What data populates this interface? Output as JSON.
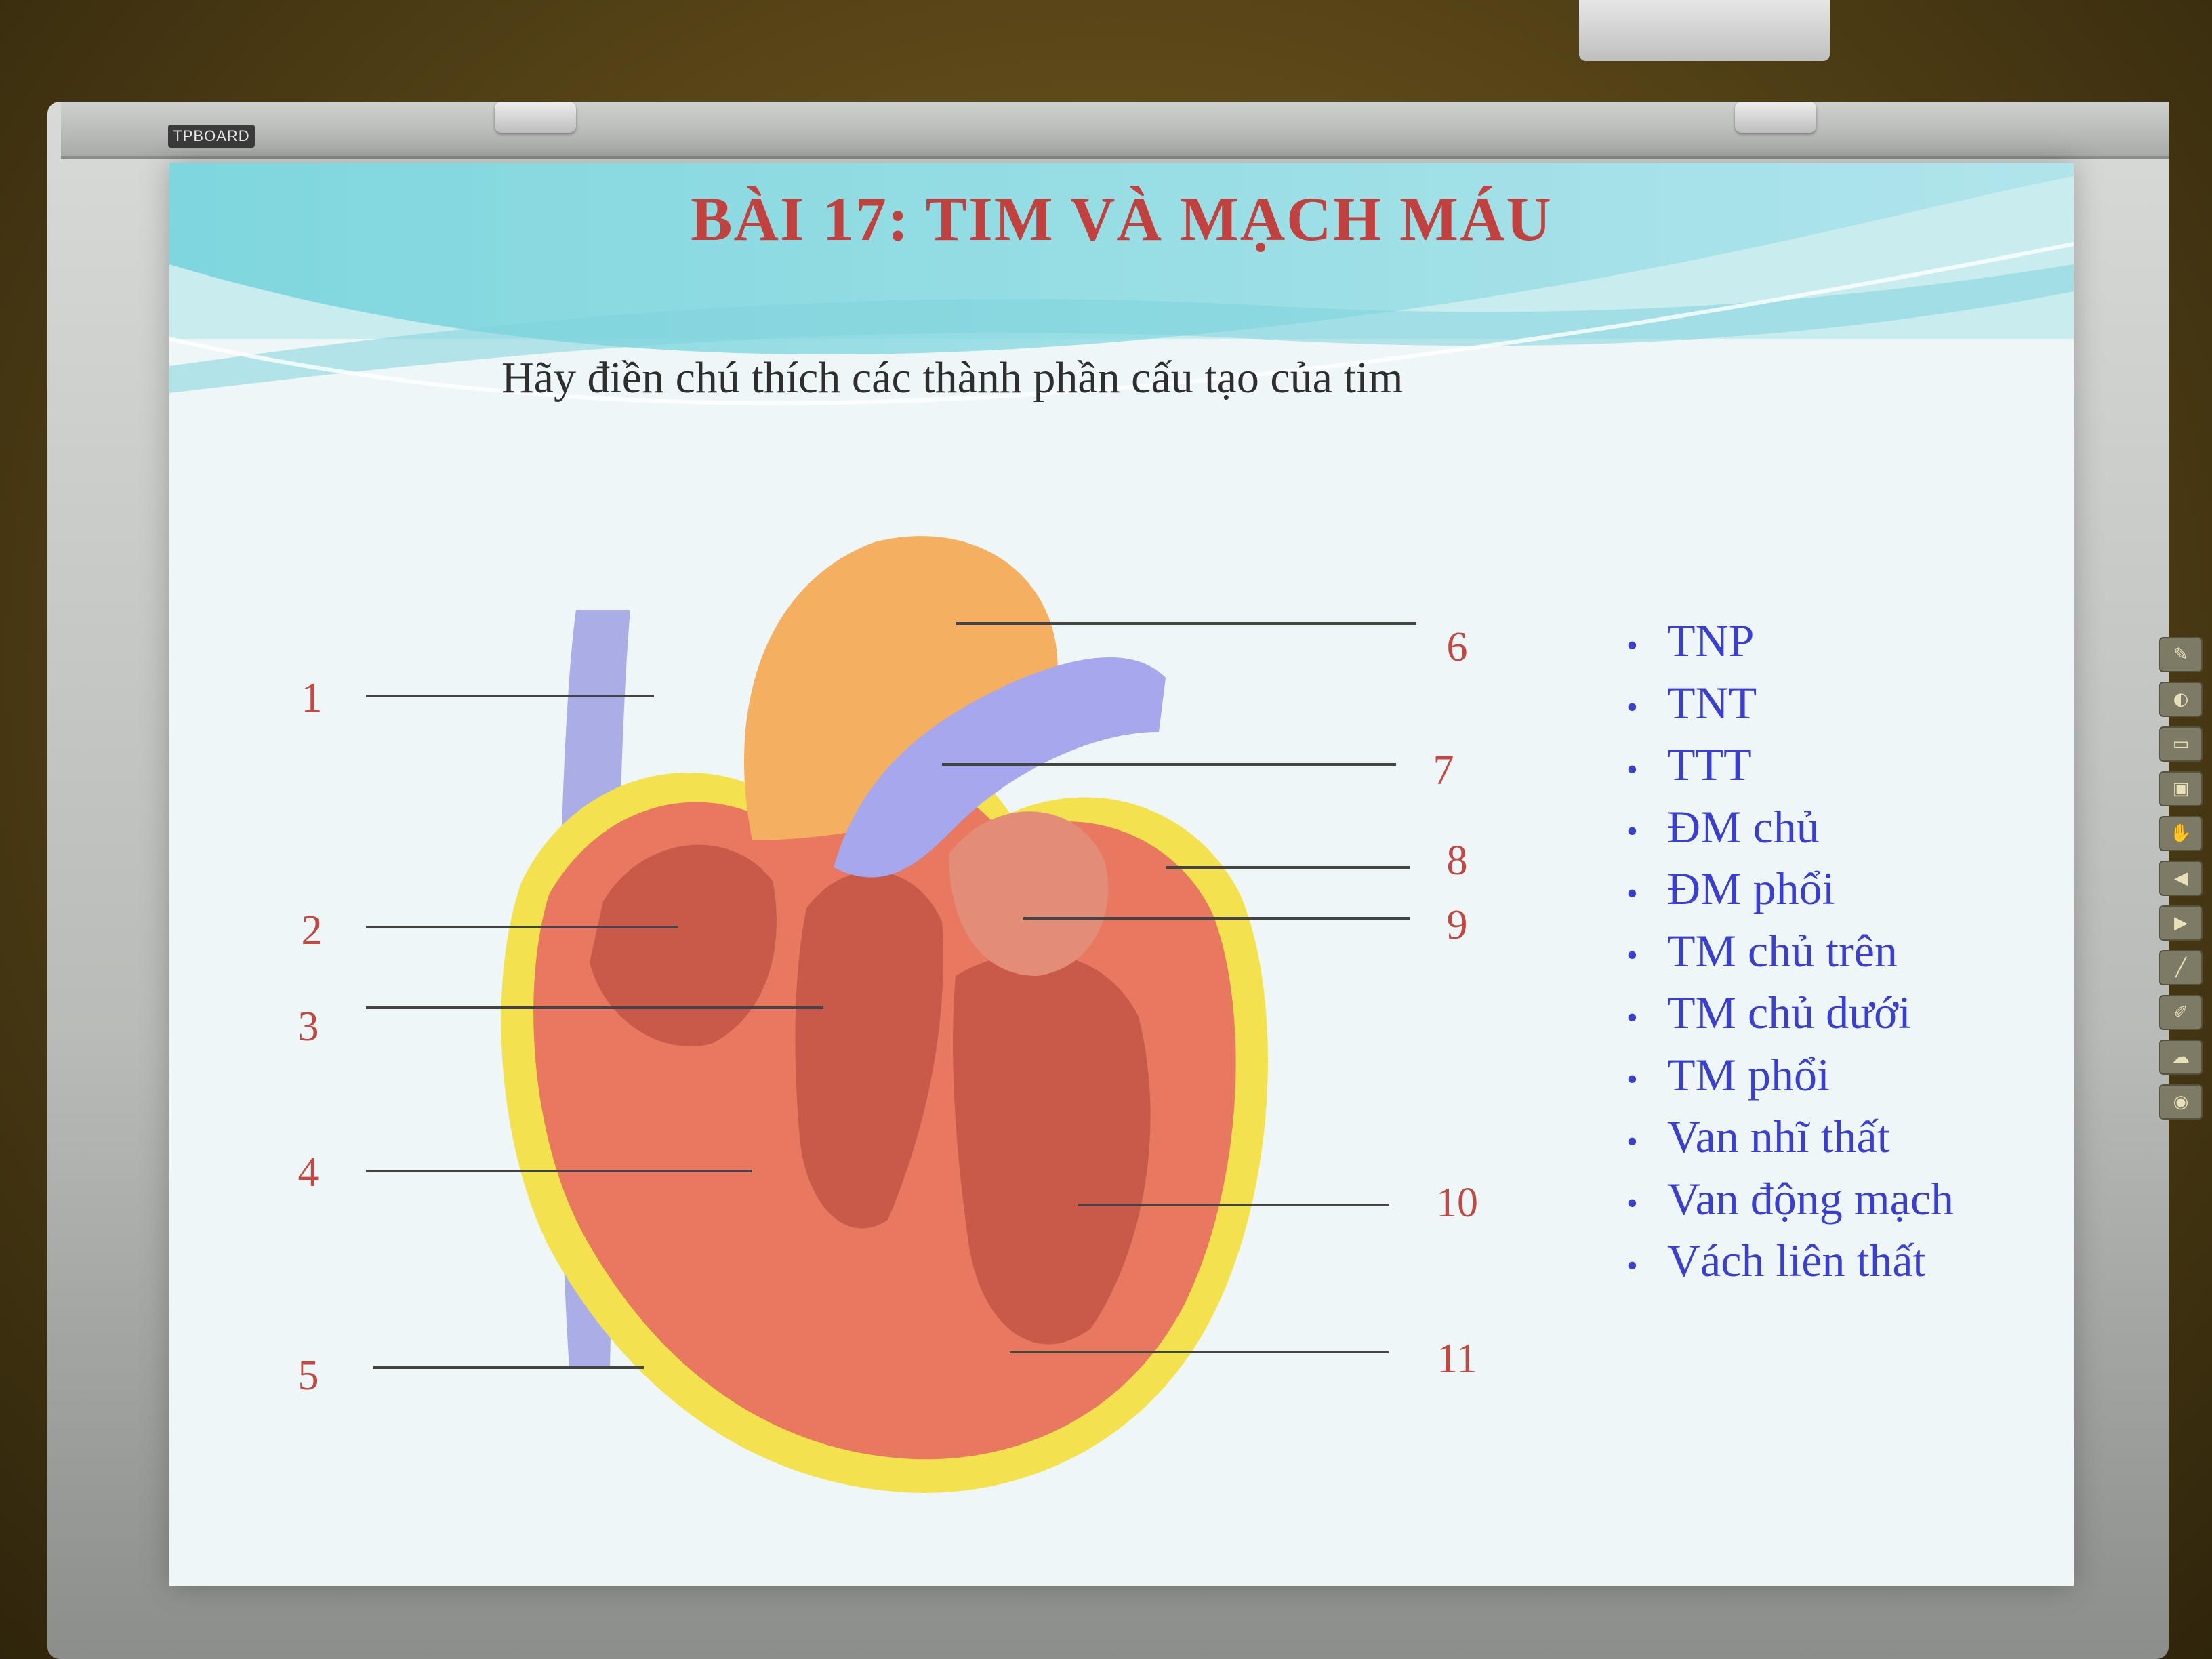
{
  "board": {
    "brand_label": "TPBOARD",
    "toolbar_icons": [
      "pen-icon",
      "eraser-icon",
      "page-icon",
      "screen-icon",
      "hand-icon",
      "arrow-left-icon",
      "arrow-right-icon",
      "marker-icon",
      "highlighter-icon",
      "cloud-icon",
      "camera-icon"
    ]
  },
  "slide": {
    "title": "BÀI 17: TIM VÀ MẠCH MÁU",
    "instruction": "Hãy điền chú thích các thành phần cấu tạo của tim",
    "labels_left": [
      "1",
      "2",
      "3",
      "4",
      "5"
    ],
    "labels_right": [
      "6",
      "7",
      "8",
      "9",
      "10",
      "11"
    ],
    "answer_bullet": "•",
    "answers": [
      "TNP",
      "TNT",
      "TTT",
      "ĐM chủ",
      "ĐM phổi",
      "TM chủ trên",
      "TM chủ dưới",
      "TM phổi",
      "Van nhĩ thất",
      "Van động mạch",
      "Vách liên thất"
    ],
    "colors": {
      "title": "#c2403d",
      "label_numbers": "#c34743",
      "answers": "#3b3fd1",
      "heart_muscle": "#e8785f",
      "fat": "#f3e24e",
      "vessels": "#8e8fe0"
    }
  }
}
